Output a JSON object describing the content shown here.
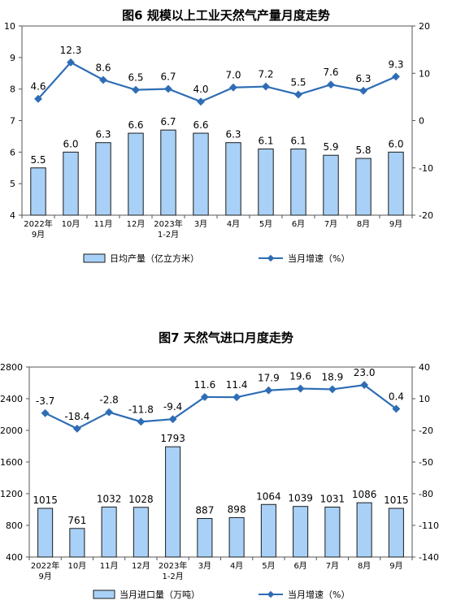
{
  "chart_data": [
    {
      "type": "bar",
      "title": "图6  规模以上工业天然气产量月度走势",
      "categories": [
        "2022年|9月",
        "10月",
        "11月",
        "12月",
        "2023年|1-2月",
        "3月",
        "4月",
        "5月",
        "6月",
        "7月",
        "8月",
        "9月"
      ],
      "series": [
        {
          "name": "日均产量（亿立方米）",
          "type": "bar",
          "axis": "left",
          "values": [
            5.5,
            6.0,
            6.3,
            6.6,
            6.7,
            6.6,
            6.3,
            6.1,
            6.1,
            5.9,
            5.8,
            6.0
          ],
          "labels": [
            "5.5",
            "6.0",
            "6.3",
            "6.6",
            "6.7",
            "6.6",
            "6.3",
            "6.1",
            "6.1",
            "5.9",
            "5.8",
            "6.0"
          ]
        },
        {
          "name": "当月增速（%）",
          "type": "line",
          "axis": "right",
          "values": [
            4.6,
            12.3,
            8.6,
            6.5,
            6.7,
            4.0,
            7.0,
            7.2,
            5.5,
            7.6,
            6.3,
            9.3
          ],
          "labels": [
            "4.6",
            "12.3",
            "8.6",
            "6.5",
            "6.7",
            "4.0",
            "7.0",
            "7.2",
            "5.5",
            "7.6",
            "6.3",
            "9.3"
          ]
        }
      ],
      "y_left": {
        "min": 4,
        "max": 10,
        "ticks": [
          "4",
          "5",
          "6",
          "7",
          "8",
          "9",
          "10"
        ]
      },
      "y_right": {
        "min": -20,
        "max": 20,
        "ticks": [
          "-20",
          "-10",
          "0",
          "10",
          "20"
        ]
      },
      "legend": [
        "日均产量（亿立方米）",
        "当月增速（%）"
      ],
      "legend_position": "bottom",
      "grid": false
    },
    {
      "type": "bar",
      "title": "图7  天然气进口月度走势",
      "categories": [
        "2022年|9月",
        "10月",
        "11月",
        "12月",
        "2023年|1-2月",
        "3月",
        "4月",
        "5月",
        "6月",
        "7月",
        "8月",
        "9月"
      ],
      "series": [
        {
          "name": "当月进口量（万吨）",
          "type": "bar",
          "axis": "left",
          "values": [
            1015,
            761,
            1032,
            1028,
            1793,
            887,
            898,
            1064,
            1039,
            1031,
            1086,
            1015
          ],
          "labels": [
            "1015",
            "761",
            "1032",
            "1028",
            "1793",
            "887",
            "898",
            "1064",
            "1039",
            "1031",
            "1086",
            "1015"
          ]
        },
        {
          "name": "当月增速（%）",
          "type": "line",
          "axis": "right",
          "values": [
            -3.7,
            -18.4,
            -2.8,
            -11.8,
            -9.4,
            11.6,
            11.4,
            17.9,
            19.6,
            18.9,
            23.0,
            0.4
          ],
          "labels": [
            "-3.7",
            "-18.4",
            "-2.8",
            "-11.8",
            "-9.4",
            "11.6",
            "11.4",
            "17.9",
            "19.6",
            "18.9",
            "23.0",
            "0.4"
          ]
        }
      ],
      "y_left": {
        "min": 400,
        "max": 2800,
        "ticks": [
          "400",
          "800",
          "1200",
          "1600",
          "2000",
          "2400",
          "2800"
        ]
      },
      "y_right": {
        "min": -140,
        "max": 40,
        "ticks": [
          "-140",
          "-110",
          "-80",
          "-50",
          "-20",
          "10",
          "40"
        ]
      },
      "legend": [
        "当月进口量（万吨）",
        "当月增速（%）"
      ],
      "legend_position": "bottom",
      "grid": false
    }
  ],
  "colors": {
    "bar_fill": "#a9d1f7",
    "bar_stroke": "#1a1a1a",
    "line": "#2e6db5"
  }
}
